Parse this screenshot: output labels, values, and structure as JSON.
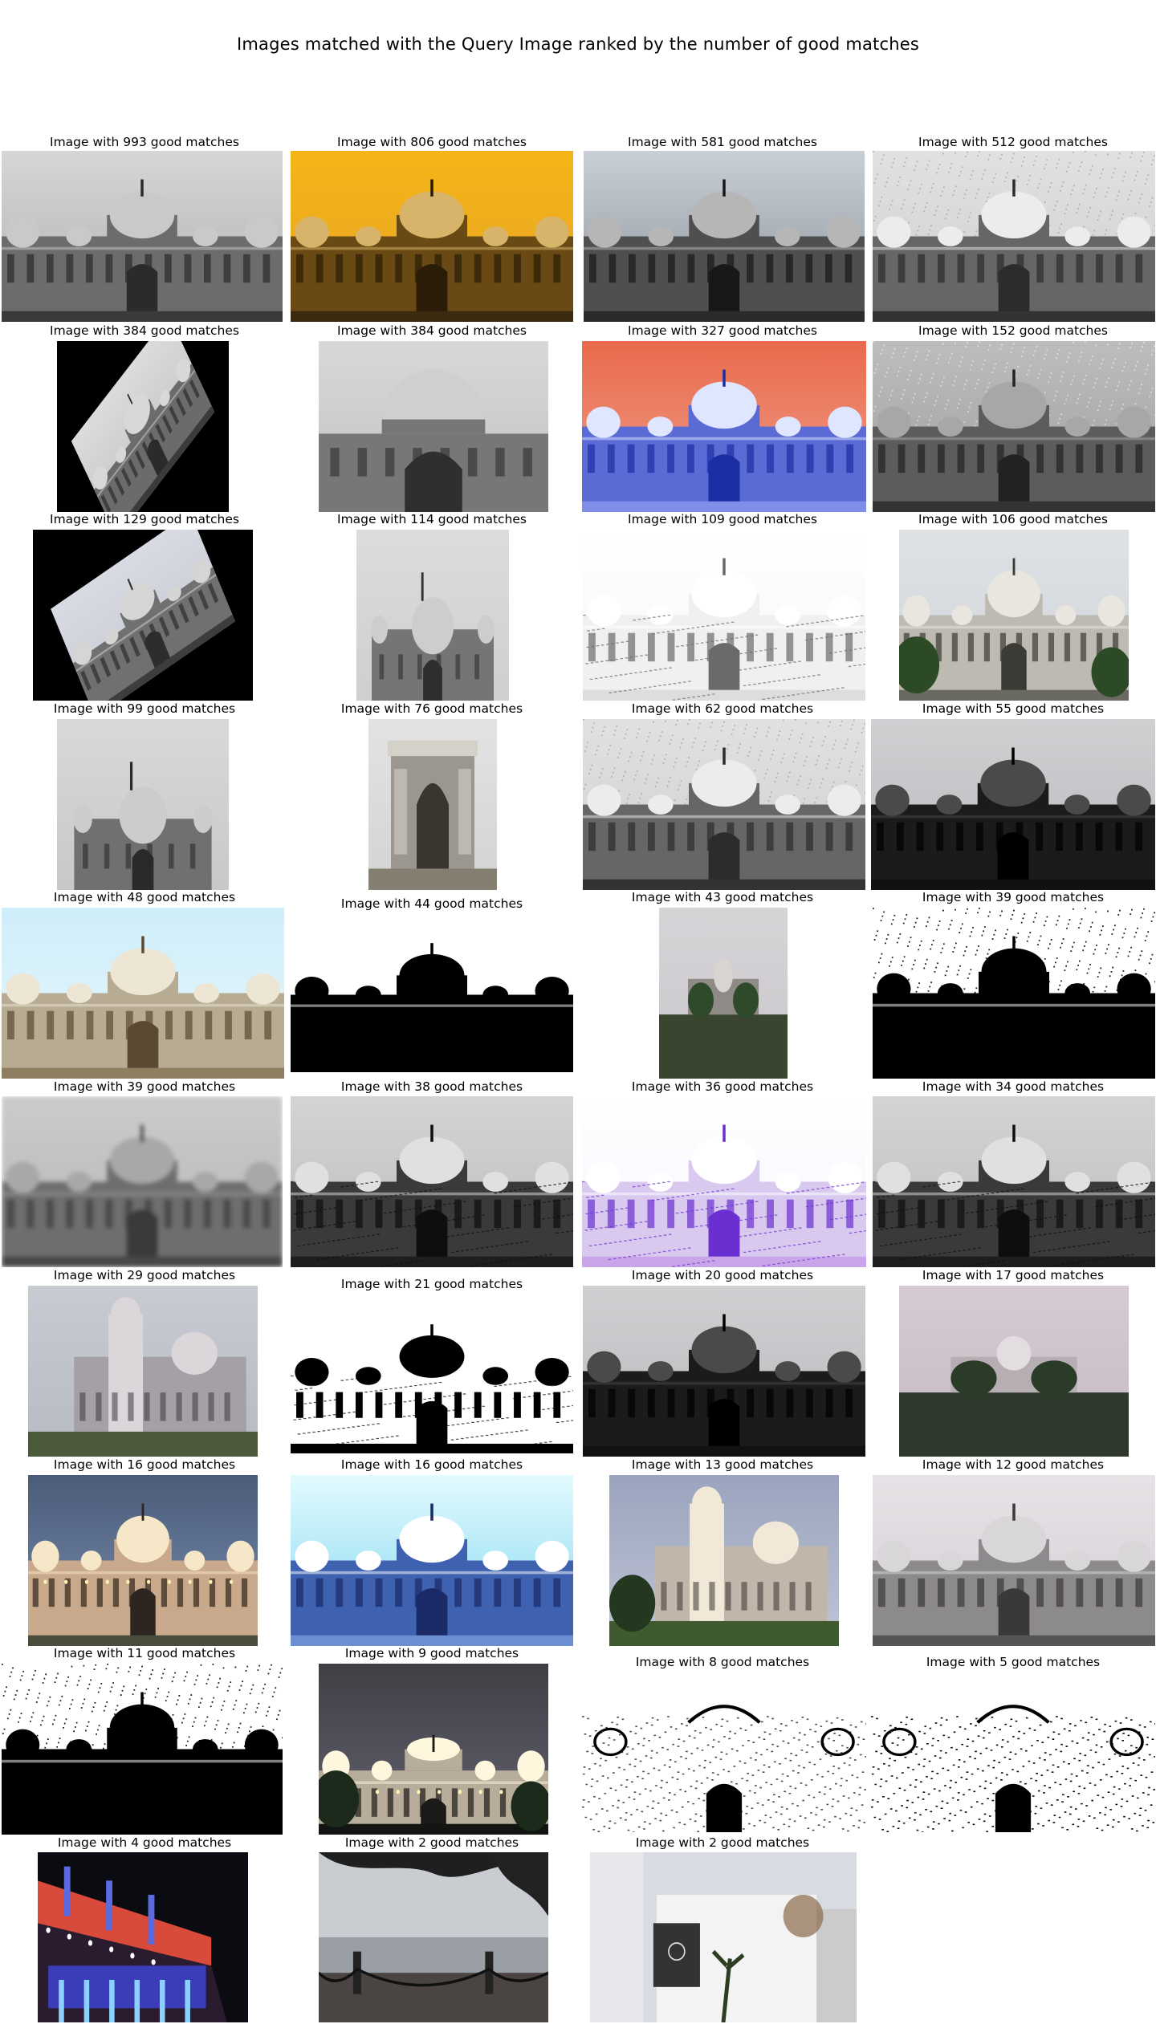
{
  "title": "Images matched with the Query Image ranked by the number of good matches",
  "results": [
    {
      "caption": "Image with 993 good matches",
      "variant": "gray"
    },
    {
      "caption": "Image with 806 good matches",
      "variant": "orange"
    },
    {
      "caption": "Image with 581 good matches",
      "variant": "gray-dark"
    },
    {
      "caption": "Image with 512 good matches",
      "variant": "gray-noise"
    },
    {
      "caption": "Image with 384 good matches",
      "variant": "rotated"
    },
    {
      "caption": "Image with 384 good matches",
      "variant": "zoom"
    },
    {
      "caption": "Image with 327 good matches",
      "variant": "red-blue"
    },
    {
      "caption": "Image with 152 good matches",
      "variant": "noise"
    },
    {
      "caption": "Image with 129 good matches",
      "variant": "rotated2"
    },
    {
      "caption": "Image with 114 good matches",
      "variant": "portrait"
    },
    {
      "caption": "Image with 109 good matches",
      "variant": "sketch"
    },
    {
      "caption": "Image with 106 good matches",
      "variant": "color-statue"
    },
    {
      "caption": "Image with 99 good matches",
      "variant": "portrait-gray"
    },
    {
      "caption": "Image with 76 good matches",
      "variant": "arch"
    },
    {
      "caption": "Image with 62 good matches",
      "variant": "gray-noise"
    },
    {
      "caption": "Image with 55 good matches",
      "variant": "dark-silhouette"
    },
    {
      "caption": "Image with 48 good matches",
      "variant": "color-sky"
    },
    {
      "caption": "Image with 44 good matches",
      "variant": "bw"
    },
    {
      "caption": "Image with 43 good matches",
      "variant": "small-lake"
    },
    {
      "caption": "Image with 39 good matches",
      "variant": "bw-noise"
    },
    {
      "caption": "Image with 39 good matches",
      "variant": "blur"
    },
    {
      "caption": "Image with 38 good matches",
      "variant": "gray-edge"
    },
    {
      "caption": "Image with 36 good matches",
      "variant": "purple"
    },
    {
      "caption": "Image with 34 good matches",
      "variant": "gray-edge"
    },
    {
      "caption": "Image with 29 good matches",
      "variant": "side-view"
    },
    {
      "caption": "Image with 21 good matches",
      "variant": "bw-sketch"
    },
    {
      "caption": "Image with 20 good matches",
      "variant": "dark-silhouette"
    },
    {
      "caption": "Image with 17 good matches",
      "variant": "lake-dusk"
    },
    {
      "caption": "Image with 16 good matches",
      "variant": "night-lit"
    },
    {
      "caption": "Image with 16 good matches",
      "variant": "blue-paint"
    },
    {
      "caption": "Image with 13 good matches",
      "variant": "garden-dusk"
    },
    {
      "caption": "Image with 12 good matches",
      "variant": "gray-pink"
    },
    {
      "caption": "Image with 11 good matches",
      "variant": "bw-noise"
    },
    {
      "caption": "Image with 9 good matches",
      "variant": "night-far"
    },
    {
      "caption": "Image with 8 good matches",
      "variant": "bw-crop"
    },
    {
      "caption": "Image with 5 good matches",
      "variant": "bw-crop2"
    },
    {
      "caption": "Image with 4 good matches",
      "variant": "mall"
    },
    {
      "caption": "Image with 2 good matches",
      "variant": "river"
    },
    {
      "caption": "Image with 2 good matches",
      "variant": "building"
    }
  ]
}
